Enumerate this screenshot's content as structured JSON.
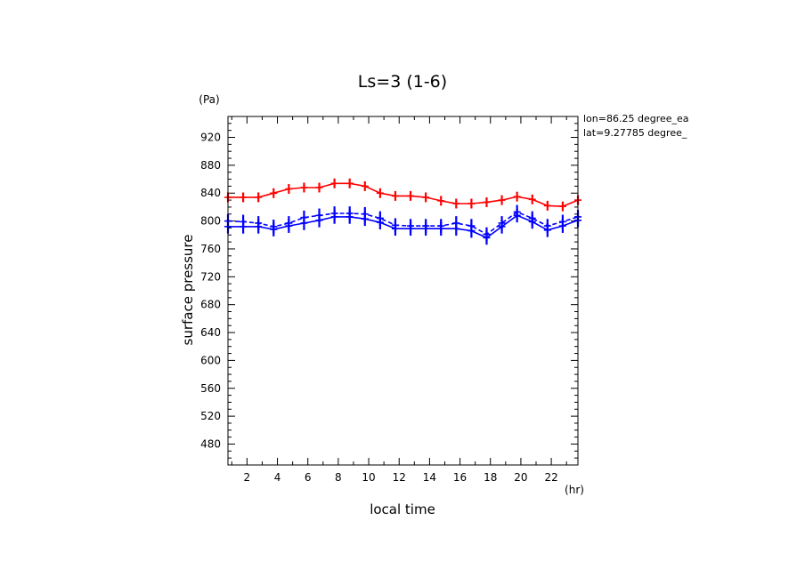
{
  "chart_data": {
    "type": "line",
    "title": "Ls=3 (1-6)",
    "xlabel": "local time",
    "ylabel": "surface pressure",
    "x_unit": "(hr)",
    "y_unit": "(Pa)",
    "xlim": [
      0.75,
      23.75
    ],
    "ylim": [
      450,
      950
    ],
    "x_ticks": [
      2,
      4,
      6,
      8,
      10,
      12,
      14,
      16,
      18,
      20,
      22
    ],
    "y_ticks": [
      480,
      520,
      560,
      600,
      640,
      680,
      720,
      760,
      800,
      840,
      880,
      920
    ],
    "annotations": [
      "lon=86.25 degree_ea",
      "lat=9.27785 degree_"
    ],
    "x": [
      0.75,
      1.75,
      2.75,
      3.75,
      4.75,
      5.75,
      6.75,
      7.75,
      8.75,
      9.75,
      10.75,
      11.75,
      12.75,
      13.75,
      14.75,
      15.75,
      16.75,
      17.75,
      18.75,
      19.75,
      20.75,
      21.75,
      22.75,
      23.75
    ],
    "series": [
      {
        "color": "#ff0000",
        "line_style": "solid",
        "values": [
          834,
          834,
          834,
          840,
          846,
          848,
          848,
          854,
          854,
          850,
          840,
          836,
          836,
          834,
          829,
          825,
          825,
          827,
          830,
          835,
          831,
          822,
          821,
          830
        ],
        "spread": 7
      },
      {
        "color": "#0000ff",
        "line_style": "solid",
        "values": [
          792,
          792,
          792,
          788,
          793,
          797,
          801,
          806,
          806,
          803,
          798,
          789,
          789,
          789,
          789,
          789,
          786,
          776,
          792,
          808,
          799,
          787,
          793,
          801
        ],
        "spread": 10
      },
      {
        "color": "#0000ff",
        "line_style": "dashed",
        "values": [
          800,
          799,
          797,
          792,
          797,
          805,
          808,
          811,
          811,
          810,
          804,
          794,
          793,
          793,
          793,
          797,
          793,
          781,
          797,
          813,
          804,
          793,
          799,
          806
        ],
        "spread": 10
      }
    ]
  }
}
